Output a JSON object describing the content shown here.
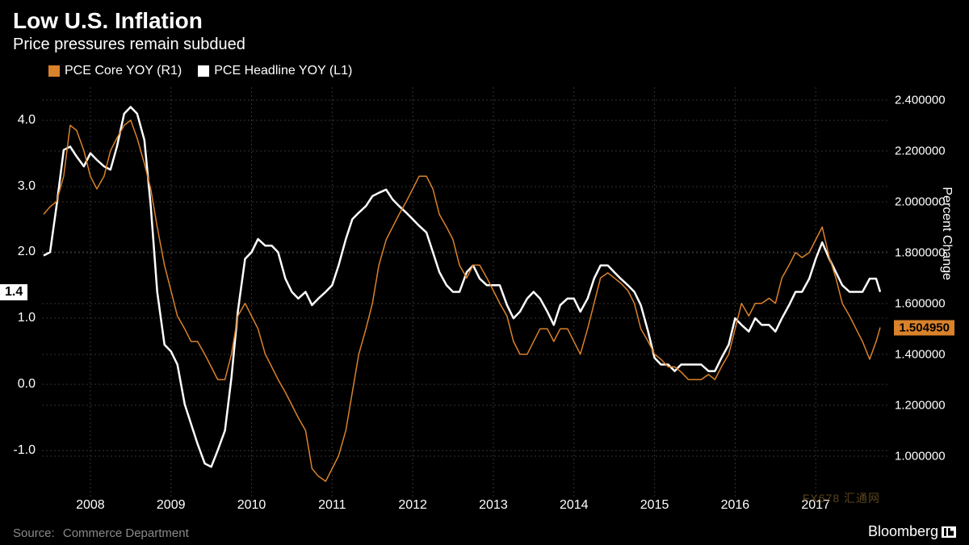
{
  "header": {
    "title": "Low U.S. Inflation",
    "subtitle": "Price pressures remain subdued"
  },
  "legend": {
    "items": [
      {
        "label": "PCE Core YOY (R1)",
        "color": "#d9822b"
      },
      {
        "label": "PCE Headline YOY (L1)",
        "color": "#ffffff"
      }
    ]
  },
  "chart": {
    "type": "line",
    "background_color": "#000000",
    "grid_color": "#333333",
    "x": {
      "ticks": [
        "2008",
        "2009",
        "2010",
        "2011",
        "2012",
        "2013",
        "2014",
        "2015",
        "2016",
        "2017"
      ],
      "range_start": 2007.4,
      "range_end": 2017.9
    },
    "y_left": {
      "label_fontsize": 16,
      "ticks": [
        -1.0,
        0.0,
        1.0,
        2.0,
        3.0,
        4.0
      ],
      "min": -1.7,
      "max": 4.5,
      "current_marker": "1.4",
      "current_value": 1.4
    },
    "y_right": {
      "title": "Percent Change",
      "label_fontsize": 15,
      "ticks": [
        "1.000000",
        "1.200000",
        "1.400000",
        "1.600000",
        "1.800000",
        "2.000000",
        "2.200000",
        "2.400000"
      ],
      "tick_values": [
        1.0,
        1.2,
        1.4,
        1.6,
        1.8,
        2.0,
        2.2,
        2.4
      ],
      "min": 0.84,
      "max": 2.45,
      "current_marker": "1.504950",
      "current_value": 1.50495
    },
    "series": [
      {
        "name": "PCE Headline YOY (L1)",
        "axis": "left",
        "color": "#ffffff",
        "line_width": 2.5,
        "points": [
          [
            2007.42,
            1.95
          ],
          [
            2007.5,
            2.0
          ],
          [
            2007.58,
            2.7
          ],
          [
            2007.67,
            3.55
          ],
          [
            2007.75,
            3.6
          ],
          [
            2007.83,
            3.45
          ],
          [
            2007.92,
            3.3
          ],
          [
            2008.0,
            3.5
          ],
          [
            2008.08,
            3.4
          ],
          [
            2008.17,
            3.3
          ],
          [
            2008.25,
            3.25
          ],
          [
            2008.33,
            3.6
          ],
          [
            2008.42,
            4.1
          ],
          [
            2008.5,
            4.2
          ],
          [
            2008.58,
            4.1
          ],
          [
            2008.67,
            3.7
          ],
          [
            2008.75,
            2.7
          ],
          [
            2008.83,
            1.4
          ],
          [
            2008.92,
            0.6
          ],
          [
            2009.0,
            0.5
          ],
          [
            2009.08,
            0.3
          ],
          [
            2009.17,
            -0.3
          ],
          [
            2009.25,
            -0.6
          ],
          [
            2009.33,
            -0.9
          ],
          [
            2009.42,
            -1.2
          ],
          [
            2009.5,
            -1.25
          ],
          [
            2009.58,
            -1.0
          ],
          [
            2009.67,
            -0.7
          ],
          [
            2009.75,
            0.1
          ],
          [
            2009.83,
            1.1
          ],
          [
            2009.92,
            1.9
          ],
          [
            2010.0,
            2.0
          ],
          [
            2010.08,
            2.2
          ],
          [
            2010.17,
            2.1
          ],
          [
            2010.25,
            2.1
          ],
          [
            2010.33,
            2.0
          ],
          [
            2010.42,
            1.6
          ],
          [
            2010.5,
            1.4
          ],
          [
            2010.58,
            1.3
          ],
          [
            2010.67,
            1.4
          ],
          [
            2010.75,
            1.2
          ],
          [
            2010.83,
            1.3
          ],
          [
            2010.92,
            1.4
          ],
          [
            2011.0,
            1.5
          ],
          [
            2011.08,
            1.8
          ],
          [
            2011.17,
            2.2
          ],
          [
            2011.25,
            2.5
          ],
          [
            2011.33,
            2.6
          ],
          [
            2011.42,
            2.7
          ],
          [
            2011.5,
            2.85
          ],
          [
            2011.58,
            2.9
          ],
          [
            2011.67,
            2.95
          ],
          [
            2011.75,
            2.8
          ],
          [
            2011.83,
            2.7
          ],
          [
            2011.92,
            2.6
          ],
          [
            2012.0,
            2.5
          ],
          [
            2012.08,
            2.4
          ],
          [
            2012.17,
            2.3
          ],
          [
            2012.25,
            2.0
          ],
          [
            2012.33,
            1.7
          ],
          [
            2012.42,
            1.5
          ],
          [
            2012.5,
            1.4
          ],
          [
            2012.58,
            1.4
          ],
          [
            2012.67,
            1.7
          ],
          [
            2012.75,
            1.8
          ],
          [
            2012.83,
            1.6
          ],
          [
            2012.92,
            1.5
          ],
          [
            2013.0,
            1.5
          ],
          [
            2013.08,
            1.5
          ],
          [
            2013.17,
            1.2
          ],
          [
            2013.25,
            1.0
          ],
          [
            2013.33,
            1.1
          ],
          [
            2013.42,
            1.3
          ],
          [
            2013.5,
            1.4
          ],
          [
            2013.58,
            1.3
          ],
          [
            2013.67,
            1.1
          ],
          [
            2013.75,
            0.9
          ],
          [
            2013.83,
            1.2
          ],
          [
            2013.92,
            1.3
          ],
          [
            2014.0,
            1.3
          ],
          [
            2014.08,
            1.1
          ],
          [
            2014.17,
            1.3
          ],
          [
            2014.25,
            1.6
          ],
          [
            2014.33,
            1.8
          ],
          [
            2014.42,
            1.8
          ],
          [
            2014.5,
            1.7
          ],
          [
            2014.58,
            1.6
          ],
          [
            2014.67,
            1.5
          ],
          [
            2014.75,
            1.4
          ],
          [
            2014.83,
            1.2
          ],
          [
            2014.92,
            0.8
          ],
          [
            2015.0,
            0.4
          ],
          [
            2015.08,
            0.3
          ],
          [
            2015.17,
            0.3
          ],
          [
            2015.25,
            0.2
          ],
          [
            2015.33,
            0.3
          ],
          [
            2015.42,
            0.3
          ],
          [
            2015.5,
            0.3
          ],
          [
            2015.58,
            0.3
          ],
          [
            2015.67,
            0.2
          ],
          [
            2015.75,
            0.2
          ],
          [
            2015.83,
            0.4
          ],
          [
            2015.92,
            0.6
          ],
          [
            2016.0,
            1.0
          ],
          [
            2016.08,
            0.9
          ],
          [
            2016.17,
            0.8
          ],
          [
            2016.25,
            1.0
          ],
          [
            2016.33,
            0.9
          ],
          [
            2016.42,
            0.9
          ],
          [
            2016.5,
            0.8
          ],
          [
            2016.58,
            1.0
          ],
          [
            2016.67,
            1.2
          ],
          [
            2016.75,
            1.4
          ],
          [
            2016.83,
            1.4
          ],
          [
            2016.92,
            1.6
          ],
          [
            2017.0,
            1.9
          ],
          [
            2017.08,
            2.15
          ],
          [
            2017.17,
            1.9
          ],
          [
            2017.25,
            1.7
          ],
          [
            2017.33,
            1.5
          ],
          [
            2017.42,
            1.4
          ],
          [
            2017.5,
            1.4
          ],
          [
            2017.58,
            1.4
          ],
          [
            2017.67,
            1.6
          ],
          [
            2017.75,
            1.6
          ],
          [
            2017.8,
            1.4
          ]
        ]
      },
      {
        "name": "PCE Core YOY (R1)",
        "axis": "right",
        "color": "#d9822b",
        "line_width": 1.5,
        "points": [
          [
            2007.42,
            1.95
          ],
          [
            2007.5,
            1.98
          ],
          [
            2007.58,
            2.0
          ],
          [
            2007.67,
            2.1
          ],
          [
            2007.75,
            2.3
          ],
          [
            2007.83,
            2.28
          ],
          [
            2007.92,
            2.2
          ],
          [
            2008.0,
            2.1
          ],
          [
            2008.08,
            2.05
          ],
          [
            2008.17,
            2.1
          ],
          [
            2008.25,
            2.2
          ],
          [
            2008.33,
            2.25
          ],
          [
            2008.42,
            2.3
          ],
          [
            2008.5,
            2.32
          ],
          [
            2008.58,
            2.25
          ],
          [
            2008.67,
            2.15
          ],
          [
            2008.75,
            2.05
          ],
          [
            2008.83,
            1.9
          ],
          [
            2008.92,
            1.75
          ],
          [
            2009.0,
            1.65
          ],
          [
            2009.08,
            1.55
          ],
          [
            2009.17,
            1.5
          ],
          [
            2009.25,
            1.45
          ],
          [
            2009.33,
            1.45
          ],
          [
            2009.42,
            1.4
          ],
          [
            2009.5,
            1.35
          ],
          [
            2009.58,
            1.3
          ],
          [
            2009.67,
            1.3
          ],
          [
            2009.75,
            1.4
          ],
          [
            2009.83,
            1.55
          ],
          [
            2009.92,
            1.6
          ],
          [
            2010.0,
            1.55
          ],
          [
            2010.08,
            1.5
          ],
          [
            2010.17,
            1.4
          ],
          [
            2010.25,
            1.35
          ],
          [
            2010.33,
            1.3
          ],
          [
            2010.42,
            1.25
          ],
          [
            2010.5,
            1.2
          ],
          [
            2010.58,
            1.15
          ],
          [
            2010.67,
            1.1
          ],
          [
            2010.75,
            0.95
          ],
          [
            2010.83,
            0.92
          ],
          [
            2010.92,
            0.9
          ],
          [
            2011.0,
            0.95
          ],
          [
            2011.08,
            1.0
          ],
          [
            2011.17,
            1.1
          ],
          [
            2011.25,
            1.25
          ],
          [
            2011.33,
            1.4
          ],
          [
            2011.42,
            1.5
          ],
          [
            2011.5,
            1.6
          ],
          [
            2011.58,
            1.75
          ],
          [
            2011.67,
            1.85
          ],
          [
            2011.75,
            1.9
          ],
          [
            2011.83,
            1.95
          ],
          [
            2011.92,
            2.0
          ],
          [
            2012.0,
            2.05
          ],
          [
            2012.08,
            2.1
          ],
          [
            2012.17,
            2.1
          ],
          [
            2012.25,
            2.05
          ],
          [
            2012.33,
            1.95
          ],
          [
            2012.42,
            1.9
          ],
          [
            2012.5,
            1.85
          ],
          [
            2012.58,
            1.75
          ],
          [
            2012.67,
            1.7
          ],
          [
            2012.75,
            1.75
          ],
          [
            2012.83,
            1.75
          ],
          [
            2012.92,
            1.7
          ],
          [
            2013.0,
            1.65
          ],
          [
            2013.08,
            1.6
          ],
          [
            2013.17,
            1.55
          ],
          [
            2013.25,
            1.45
          ],
          [
            2013.33,
            1.4
          ],
          [
            2013.42,
            1.4
          ],
          [
            2013.5,
            1.45
          ],
          [
            2013.58,
            1.5
          ],
          [
            2013.67,
            1.5
          ],
          [
            2013.75,
            1.45
          ],
          [
            2013.83,
            1.5
          ],
          [
            2013.92,
            1.5
          ],
          [
            2014.0,
            1.45
          ],
          [
            2014.08,
            1.4
          ],
          [
            2014.17,
            1.5
          ],
          [
            2014.25,
            1.6
          ],
          [
            2014.33,
            1.7
          ],
          [
            2014.42,
            1.72
          ],
          [
            2014.5,
            1.7
          ],
          [
            2014.58,
            1.68
          ],
          [
            2014.67,
            1.65
          ],
          [
            2014.75,
            1.6
          ],
          [
            2014.83,
            1.5
          ],
          [
            2014.92,
            1.45
          ],
          [
            2015.0,
            1.4
          ],
          [
            2015.08,
            1.38
          ],
          [
            2015.17,
            1.35
          ],
          [
            2015.25,
            1.35
          ],
          [
            2015.33,
            1.33
          ],
          [
            2015.42,
            1.3
          ],
          [
            2015.5,
            1.3
          ],
          [
            2015.58,
            1.3
          ],
          [
            2015.67,
            1.32
          ],
          [
            2015.75,
            1.3
          ],
          [
            2015.83,
            1.35
          ],
          [
            2015.92,
            1.4
          ],
          [
            2016.0,
            1.5
          ],
          [
            2016.08,
            1.6
          ],
          [
            2016.17,
            1.55
          ],
          [
            2016.25,
            1.6
          ],
          [
            2016.33,
            1.6
          ],
          [
            2016.42,
            1.62
          ],
          [
            2016.5,
            1.6
          ],
          [
            2016.58,
            1.7
          ],
          [
            2016.67,
            1.75
          ],
          [
            2016.75,
            1.8
          ],
          [
            2016.83,
            1.78
          ],
          [
            2016.92,
            1.8
          ],
          [
            2017.0,
            1.85
          ],
          [
            2017.08,
            1.9
          ],
          [
            2017.17,
            1.78
          ],
          [
            2017.25,
            1.7
          ],
          [
            2017.33,
            1.6
          ],
          [
            2017.42,
            1.55
          ],
          [
            2017.5,
            1.5
          ],
          [
            2017.58,
            1.45
          ],
          [
            2017.67,
            1.38
          ],
          [
            2017.75,
            1.45
          ],
          [
            2017.8,
            1.505
          ]
        ]
      }
    ]
  },
  "footer": {
    "source_prefix": "Source:",
    "source_text": "Commerce Department",
    "brand": "Bloomberg"
  },
  "watermark": "FX678 汇通网"
}
